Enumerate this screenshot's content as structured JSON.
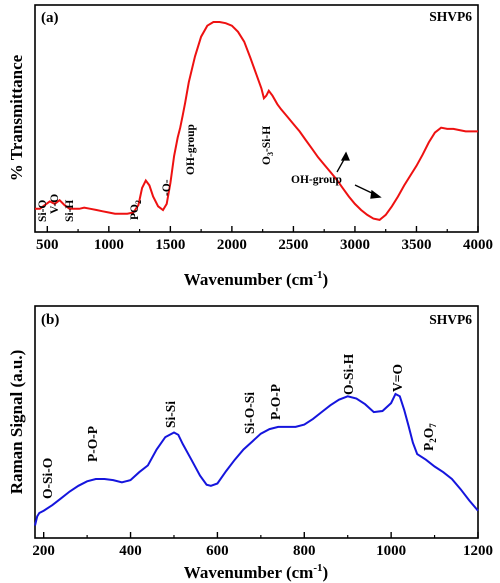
{
  "chart_data": [
    {
      "type": "line",
      "panel_label": "(a)",
      "sample_label": "SHVP6",
      "xlabel": "Wavenumber (cm",
      "xlabel_sup": "-1",
      "xlabel_close": ")",
      "ylabel": "% Transmittance",
      "xlim": [
        400,
        4000
      ],
      "y_tick_labels": "none",
      "x_ticks": [
        500,
        1000,
        1500,
        2000,
        2500,
        3000,
        3500,
        4000
      ],
      "x_tick_labels": [
        "500",
        "1000",
        "1500",
        "2000",
        "2500",
        "3000",
        "3500",
        "4000"
      ],
      "line_color": "#ee1111",
      "grid": false,
      "series": [
        {
          "x": [
            400,
            440,
            480,
            520,
            560,
            600,
            640,
            680,
            720,
            760,
            800,
            850,
            900,
            950,
            1000,
            1050,
            1100,
            1150,
            1200,
            1240,
            1270,
            1300,
            1330,
            1360,
            1400,
            1440,
            1470,
            1500,
            1530,
            1560,
            1580,
            1600,
            1620,
            1650,
            1700,
            1750,
            1800,
            1850,
            1900,
            1950,
            2000,
            2050,
            2100,
            2150,
            2200,
            2240,
            2260,
            2280,
            2300,
            2330,
            2370,
            2400,
            2450,
            2500,
            2550,
            2600,
            2650,
            2700,
            2750,
            2800,
            2850,
            2900,
            2950,
            3000,
            3050,
            3100,
            3150,
            3200,
            3250,
            3300,
            3350,
            3400,
            3450,
            3500,
            3550,
            3600,
            3650,
            3700,
            3750,
            3800,
            3850,
            3900,
            3950,
            4000
          ],
          "y": [
            14,
            14,
            17,
            20,
            18,
            21,
            17,
            14,
            14,
            14,
            15,
            14,
            13,
            12,
            11,
            10,
            10,
            10,
            11,
            17,
            31,
            37,
            33,
            24,
            16,
            13,
            18,
            35,
            57,
            72,
            80,
            90,
            100,
            117,
            138,
            154,
            163,
            166,
            166,
            165,
            163,
            158,
            150,
            137,
            123,
            112,
            104,
            106,
            110,
            106,
            99,
            95,
            89,
            83,
            77,
            70,
            63,
            56,
            50,
            44,
            38,
            31,
            24,
            18,
            13,
            9,
            6,
            5,
            9,
            16,
            24,
            33,
            41,
            49,
            58,
            68,
            76,
            80,
            79,
            79,
            78,
            77,
            77,
            77
          ]
        }
      ],
      "annotations": [
        {
          "text": "Si-O",
          "x": 440
        },
        {
          "text": "V-O",
          "x": 555
        },
        {
          "text": "Si-H",
          "x": 670
        },
        {
          "text": "PO",
          "sub": "2",
          "x": 1220
        },
        {
          "text": "-O-",
          "x": 1475
        },
        {
          "text": "OH-group",
          "x": 1660
        },
        {
          "text": "O",
          "sub": "3",
          "rest": "-Si-H",
          "x": 2265
        },
        {
          "text": "OH-group",
          "x": 2800,
          "arrows_to": [
            2900,
            3200
          ]
        }
      ]
    },
    {
      "type": "line",
      "panel_label": "(b)",
      "sample_label": "SHVP6",
      "xlabel": "Wavenumber (cm",
      "xlabel_sup": "-1",
      "xlabel_close": ")",
      "ylabel": "Raman Signal (a.u.)",
      "xlim": [
        180,
        1200
      ],
      "y_tick_labels": "none",
      "x_ticks": [
        200,
        400,
        600,
        800,
        1000,
        1200
      ],
      "x_tick_labels": [
        "200",
        "400",
        "600",
        "800",
        "1000",
        "1200"
      ],
      "line_color": "#1515dd",
      "grid": false,
      "series": [
        {
          "x": [
            180,
            185,
            190,
            200,
            220,
            240,
            260,
            280,
            300,
            320,
            340,
            360,
            380,
            400,
            420,
            440,
            460,
            480,
            500,
            510,
            520,
            540,
            560,
            575,
            585,
            600,
            620,
            640,
            660,
            680,
            700,
            720,
            740,
            760,
            780,
            800,
            820,
            840,
            860,
            880,
            900,
            920,
            940,
            960,
            980,
            1000,
            1010,
            1020,
            1030,
            1040,
            1050,
            1060,
            1080,
            1100,
            1120,
            1140,
            1160,
            1180,
            1200
          ],
          "y": [
            4,
            12,
            15,
            17,
            22,
            28,
            34,
            39,
            43,
            45,
            45,
            44,
            42,
            44,
            51,
            57,
            71,
            82,
            86,
            84,
            76,
            62,
            48,
            40,
            39,
            41,
            52,
            62,
            71,
            78,
            85,
            89,
            91,
            91,
            91,
            93,
            98,
            104,
            110,
            115,
            118,
            116,
            111,
            104,
            105,
            112,
            120,
            118,
            106,
            92,
            77,
            67,
            62,
            56,
            51,
            45,
            36,
            26,
            17
          ]
        }
      ],
      "annotations": [
        {
          "text": "O-Si-O",
          "x": 218
        },
        {
          "text": "P-O-P",
          "x": 305
        },
        {
          "text": "Si-Si",
          "x": 485
        },
        {
          "text": "Si-O-Si",
          "x": 690
        },
        {
          "text": "P-O-P",
          "x": 745
        },
        {
          "text": "O-Si-H",
          "x": 903
        },
        {
          "text": "V=O",
          "x": 1015
        },
        {
          "text": "P",
          "sub": "2",
          "rest": "O",
          "sub2": "7",
          "x": 1062
        }
      ]
    }
  ]
}
